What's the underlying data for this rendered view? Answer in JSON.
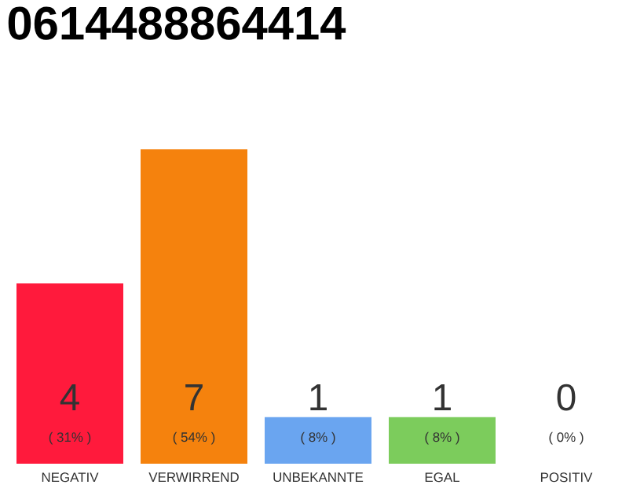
{
  "chart_data": {
    "type": "bar",
    "title": "0614488864414",
    "categories": [
      "NEGATIV",
      "VERWIRREND",
      "UNBEKANNTE",
      "EGAL",
      "POSITIV"
    ],
    "values": [
      31,
      54,
      8,
      8,
      0
    ],
    "colors": [
      "#ff1a3c",
      "#f5820d",
      "#6aa5f0",
      "#7ccc5c",
      "#b0b0b0"
    ],
    "value_labels": [
      "( 31% )",
      "( 54% )",
      "( 8% )",
      "( 8% )",
      "( 0% )"
    ],
    "annotations": [
      "4",
      "7",
      "1",
      "1",
      "0"
    ],
    "ylim": [
      0,
      54
    ],
    "tick_labels": "x"
  }
}
